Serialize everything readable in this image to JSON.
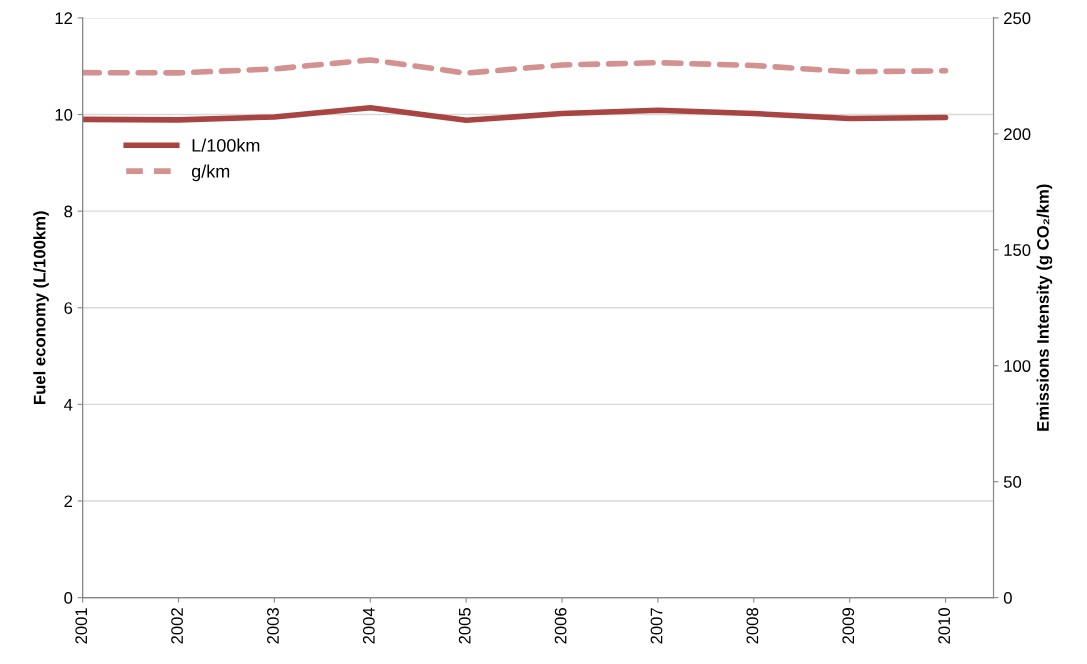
{
  "chart_data": {
    "type": "line",
    "ylabel": "Fuel economy (L/100km)",
    "y2label": "Emissions Intensity (g CO₂/km)",
    "categories": [
      "2001",
      "2002",
      "2003",
      "2004",
      "2005",
      "2006",
      "2007",
      "2008",
      "2009",
      "2010"
    ],
    "series": [
      {
        "name": "L/100km",
        "color": "#a84442",
        "line_style": "solid",
        "values": [
          9.9,
          9.89,
          9.95,
          10.14,
          9.88,
          10.02,
          10.09,
          10.02,
          9.92,
          9.94
        ]
      },
      {
        "name": "g/km",
        "color": "#d39290",
        "line_style": "dashed",
        "axis": "y2",
        "values": [
          226.4,
          226.3,
          228.0,
          231.9,
          226.2,
          229.7,
          230.7,
          229.5,
          226.8,
          227.2
        ]
      }
    ],
    "ylim": [
      0,
      12
    ],
    "yticks": [
      0,
      2,
      4,
      6,
      8,
      10,
      12
    ],
    "y2lim": [
      0,
      250
    ],
    "y2ticks": [
      0,
      50,
      100,
      150,
      200,
      250
    ],
    "grid": "y",
    "legend": "top left",
    "marker": "none"
  }
}
